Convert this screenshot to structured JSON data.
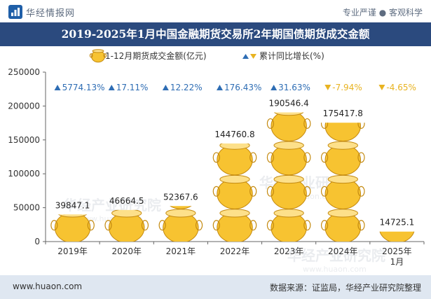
{
  "header": {
    "brand": "华经情报网",
    "tagline": "专业严谨 ● 客观科学",
    "title": "2019-2025年1月中国金融期货交易所2年期国债期货成交金额"
  },
  "footer": {
    "url": "www.huaon.com",
    "source": "数据来源：证监局，华经产业研究院整理"
  },
  "watermark": "华经产业研究院\nwww.huaon.com",
  "colors": {
    "header_band": "#2b4a7e",
    "bar_fill": "#f7c331",
    "bar_outline": "#c48a10",
    "growth_up": "#2e6db4",
    "growth_down": "#e8b321",
    "footer_band": "#dfe7f1"
  },
  "chart_data": {
    "type": "bar",
    "categories": [
      "2019年",
      "2020年",
      "2021年",
      "2022年",
      "2023年",
      "2024年",
      "2025年\n1月"
    ],
    "series": [
      {
        "name": "1-12月期货成交金额(亿元)",
        "values": [
          39847.1,
          46664.5,
          52367.6,
          144760.8,
          190546.4,
          175417.8,
          14725.1
        ],
        "labels": [
          "39847.1",
          "46664.5",
          "52367.6",
          "144760.8",
          "190546.4",
          "175417.8",
          "14725.1"
        ]
      },
      {
        "name": "累计同比增长(%)",
        "values": [
          5774.13,
          17.11,
          12.22,
          176.43,
          31.63,
          -7.94,
          -4.65
        ],
        "labels": [
          "5774.13%",
          "17.11%",
          "12.22%",
          "176.43%",
          "31.63%",
          "-7.94%",
          "-4.65%"
        ]
      }
    ],
    "yticks": [
      "0",
      "50000",
      "100000",
      "150000",
      "200000",
      "250000"
    ],
    "ylim": [
      0,
      250000
    ],
    "grid": false,
    "legend": "top-center",
    "bar_style": "pictograph"
  }
}
